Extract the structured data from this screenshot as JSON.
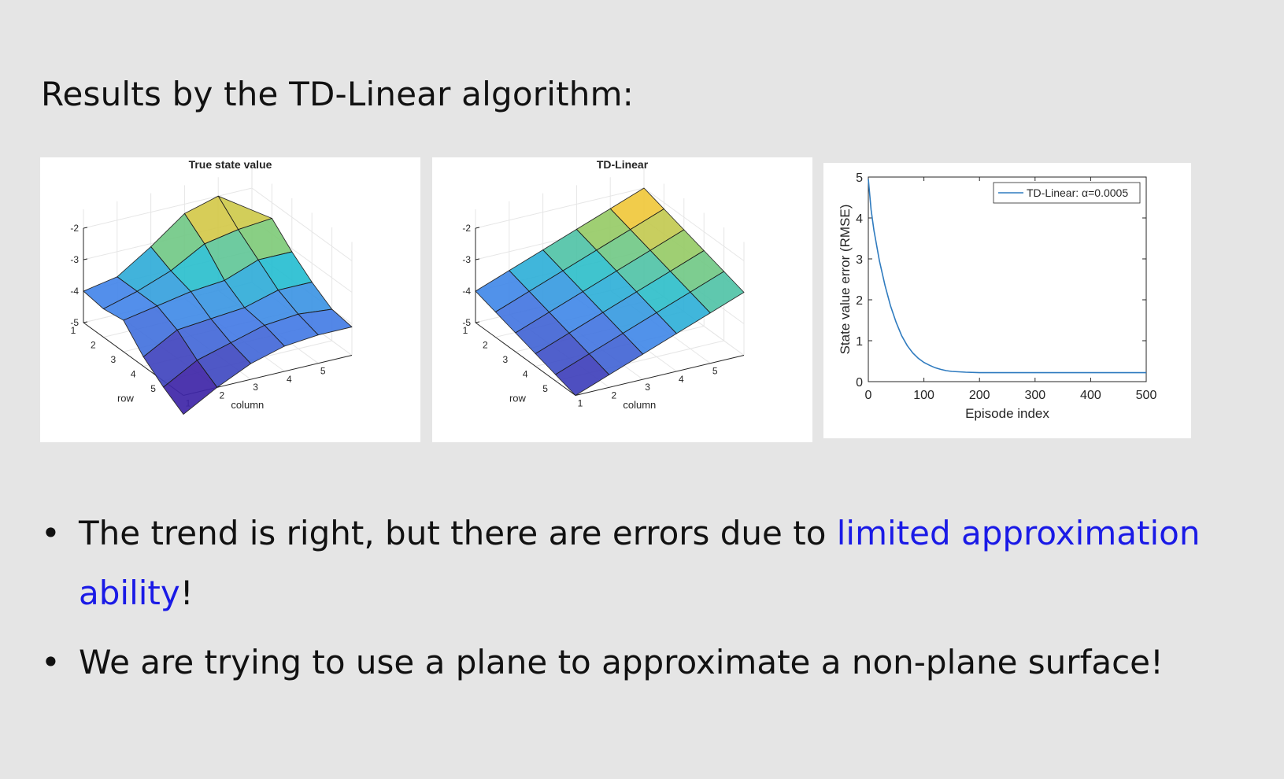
{
  "slide": {
    "heading": "Results by the TD-Linear algorithm:",
    "bullet_glyph": "•",
    "bullets": [
      {
        "pre": "The trend is right, but there are errors due to ",
        "highlight": "limited approximation ability",
        "post": "!"
      },
      {
        "pre": "We are trying to use a plane to approximate a non-plane surface!",
        "highlight": "",
        "post": ""
      }
    ],
    "highlight_color": "#1a1ae6"
  },
  "chart_data": [
    {
      "type": "surface",
      "title": "True state value",
      "xlabel": "column",
      "ylabel": "row",
      "x_ticks": [
        "1",
        "2",
        "3",
        "4",
        "5"
      ],
      "y_ticks": [
        "1",
        "2",
        "3",
        "4",
        "5"
      ],
      "z_ticks": [
        "-2",
        "-3",
        "-4",
        "-5"
      ],
      "zlim": [
        -5,
        -2
      ],
      "grid": true,
      "z": [
        [
          -4.0,
          -3.8,
          -3.1,
          -2.3,
          -2.0,
          -2.7
        ],
        [
          -4.1,
          -3.8,
          -3.4,
          -2.8,
          -2.6,
          -2.5
        ],
        [
          -4.0,
          -3.8,
          -3.6,
          -3.5,
          -3.1,
          -3.1
        ],
        [
          -4.7,
          -4.1,
          -4.0,
          -3.9,
          -3.6,
          -3.6
        ],
        [
          -5.2,
          -4.6,
          -4.3,
          -4.0,
          -3.9,
          -4.0
        ],
        [
          -5.6,
          -5.0,
          -4.5,
          -4.2,
          -4.1,
          -4.1
        ]
      ]
    },
    {
      "type": "surface",
      "title": "TD-Linear",
      "xlabel": "column",
      "ylabel": "row",
      "x_ticks": [
        "1",
        "2",
        "3",
        "4",
        "5"
      ],
      "y_ticks": [
        "1",
        "2",
        "3",
        "4",
        "5"
      ],
      "z_ticks": [
        "-2",
        "-3",
        "-4",
        "-5"
      ],
      "zlim": [
        -5,
        -2
      ],
      "grid": true,
      "z": [
        [
          -4.0,
          -3.6,
          -3.2,
          -2.8,
          -2.4,
          -2.0
        ],
        [
          -4.2,
          -3.8,
          -3.4,
          -3.0,
          -2.6,
          -2.2
        ],
        [
          -4.4,
          -4.0,
          -3.6,
          -3.2,
          -2.8,
          -2.4
        ],
        [
          -4.6,
          -4.2,
          -3.8,
          -3.4,
          -3.0,
          -2.6
        ],
        [
          -4.8,
          -4.4,
          -4.0,
          -3.6,
          -3.2,
          -2.8
        ],
        [
          -5.0,
          -4.6,
          -4.2,
          -3.8,
          -3.4,
          -3.0
        ]
      ]
    },
    {
      "type": "line",
      "xlabel": "Episode index",
      "ylabel": "State value error (RMSE)",
      "xlim": [
        0,
        500
      ],
      "ylim": [
        0,
        5
      ],
      "x_ticks": [
        0,
        100,
        200,
        300,
        400,
        500
      ],
      "y_ticks": [
        0,
        1,
        2,
        3,
        4,
        5
      ],
      "legend_position": "top-right",
      "series": [
        {
          "name": "TD-Linear: α=0.0005",
          "color": "#2f7bbf",
          "x": [
            0,
            5,
            10,
            20,
            30,
            40,
            50,
            60,
            70,
            80,
            90,
            100,
            110,
            120,
            130,
            140,
            150,
            175,
            200,
            250,
            300,
            350,
            400,
            450,
            500
          ],
          "y": [
            4.95,
            4.2,
            3.7,
            2.95,
            2.35,
            1.85,
            1.45,
            1.12,
            0.88,
            0.7,
            0.57,
            0.47,
            0.4,
            0.34,
            0.3,
            0.27,
            0.25,
            0.23,
            0.22,
            0.22,
            0.22,
            0.22,
            0.22,
            0.22,
            0.22
          ]
        }
      ]
    }
  ]
}
